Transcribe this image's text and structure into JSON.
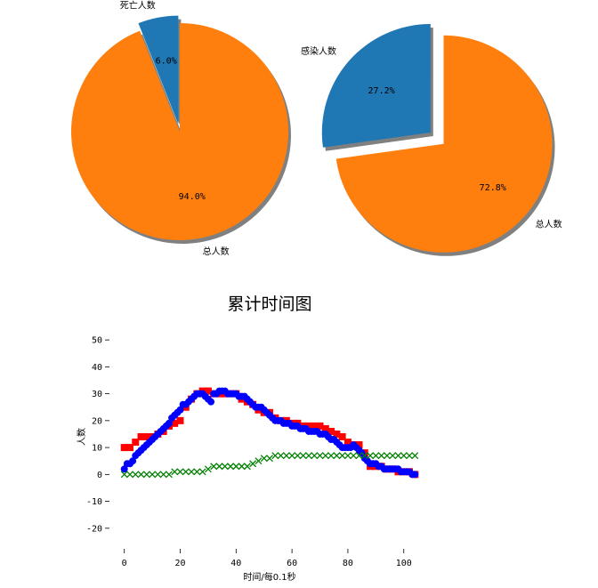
{
  "colors": {
    "blue": "#1f77b4",
    "orange": "#ff7f0e",
    "shadow": "#808080"
  },
  "chart_data": [
    {
      "type": "pie",
      "slices": [
        {
          "label": "死亡人数",
          "pct": "6.0%",
          "value": 6.0,
          "color": "#1f77b4",
          "explode": true
        },
        {
          "label": "总人数",
          "pct": "94.0%",
          "value": 94.0,
          "color": "#ff7f0e",
          "explode": false
        }
      ],
      "shadow": true
    },
    {
      "type": "pie",
      "slices": [
        {
          "label": "感染人数",
          "pct": "27.2%",
          "value": 27.2,
          "color": "#1f77b4",
          "explode": true
        },
        {
          "label": "总人数",
          "pct": "72.8%",
          "value": 72.8,
          "color": "#ff7f0e",
          "explode": true
        }
      ],
      "shadow": true
    },
    {
      "type": "scatter",
      "title": "累计时间图",
      "xlabel": "时间/每0.1秒",
      "ylabel": "人数",
      "xlim": [
        -5,
        109
      ],
      "ylim": [
        -27,
        55
      ],
      "xticks": [
        0,
        20,
        40,
        60,
        80,
        100
      ],
      "yticks": [
        -20,
        -10,
        0,
        10,
        20,
        30,
        40,
        50
      ],
      "grid": false,
      "series": [
        {
          "marker": "square",
          "color": "#ff0000",
          "x": [
            0,
            2,
            4,
            6,
            8,
            10,
            12,
            14,
            16,
            18,
            20,
            22,
            24,
            26,
            28,
            30,
            32,
            34,
            36,
            38,
            40,
            42,
            44,
            46,
            48,
            50,
            52,
            54,
            56,
            58,
            60,
            62,
            64,
            66,
            68,
            70,
            72,
            74,
            76,
            78,
            80,
            82,
            84,
            86,
            88,
            90,
            92,
            94,
            96,
            98,
            100,
            102,
            104
          ],
          "y": [
            10,
            10,
            12,
            14,
            14,
            14,
            15,
            16,
            18,
            19,
            20,
            25,
            28,
            30,
            31,
            31,
            30,
            30,
            30,
            30,
            30,
            28,
            27,
            26,
            24,
            23,
            23,
            21,
            20,
            20,
            19,
            19,
            18,
            18,
            18,
            18,
            17,
            16,
            15,
            14,
            12,
            11,
            11,
            8,
            3,
            3,
            3,
            2,
            2,
            1,
            1,
            1,
            0
          ]
        },
        {
          "marker": "circle",
          "color": "#0000ff",
          "x": [
            0,
            1,
            2,
            3,
            4,
            5,
            6,
            7,
            8,
            9,
            10,
            11,
            12,
            13,
            14,
            15,
            16,
            17,
            18,
            19,
            20,
            21,
            22,
            23,
            24,
            25,
            26,
            27,
            28,
            29,
            30,
            31,
            32,
            33,
            34,
            35,
            36,
            37,
            38,
            39,
            40,
            41,
            42,
            43,
            44,
            45,
            46,
            47,
            48,
            49,
            50,
            51,
            52,
            53,
            54,
            55,
            56,
            57,
            58,
            59,
            60,
            61,
            62,
            63,
            64,
            65,
            66,
            67,
            68,
            69,
            70,
            71,
            72,
            73,
            74,
            75,
            76,
            77,
            78,
            79,
            80,
            81,
            82,
            83,
            84,
            85,
            86,
            87,
            88,
            89,
            90,
            91,
            92,
            93,
            94,
            95,
            96,
            97,
            98,
            99,
            100,
            101,
            102,
            103,
            104
          ],
          "y": [
            2,
            4,
            4,
            5,
            7,
            8,
            9,
            10,
            11,
            12,
            13,
            14,
            15,
            16,
            17,
            18,
            19,
            21,
            22,
            23,
            24,
            26,
            26,
            27,
            28,
            29,
            30,
            30,
            30,
            29,
            28,
            27,
            30,
            30,
            31,
            31,
            31,
            30,
            30,
            30,
            30,
            29,
            29,
            29,
            28,
            27,
            26,
            25,
            25,
            25,
            24,
            23,
            22,
            21,
            20,
            20,
            20,
            19,
            19,
            19,
            18,
            18,
            18,
            17,
            17,
            17,
            16,
            16,
            16,
            16,
            15,
            15,
            15,
            14,
            13,
            13,
            12,
            11,
            10,
            10,
            10,
            10,
            11,
            10,
            9,
            8,
            6,
            5,
            4,
            4,
            4,
            3,
            3,
            2,
            2,
            2,
            2,
            2,
            2,
            1,
            1,
            1,
            1,
            0,
            0
          ]
        },
        {
          "marker": "x",
          "color": "#008000",
          "x": [
            0,
            2,
            4,
            6,
            8,
            10,
            12,
            14,
            16,
            18,
            20,
            22,
            24,
            26,
            28,
            30,
            32,
            34,
            36,
            38,
            40,
            42,
            44,
            46,
            48,
            50,
            52,
            54,
            56,
            58,
            60,
            62,
            64,
            66,
            68,
            70,
            72,
            74,
            76,
            78,
            80,
            82,
            84,
            86,
            88,
            90,
            92,
            94,
            96,
            98,
            100,
            102,
            104
          ],
          "y": [
            0,
            0,
            0,
            0,
            0,
            0,
            0,
            0,
            0,
            1,
            1,
            1,
            1,
            1,
            1,
            2,
            3,
            3,
            3,
            3,
            3,
            3,
            3,
            4,
            5,
            6,
            6,
            7,
            7,
            7,
            7,
            7,
            7,
            7,
            7,
            7,
            7,
            7,
            7,
            7,
            7,
            7,
            7,
            7,
            7,
            7,
            7,
            7,
            7,
            7,
            7,
            7,
            7
          ]
        }
      ]
    }
  ]
}
